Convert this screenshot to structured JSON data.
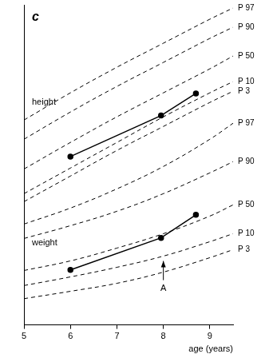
{
  "chart_data": {
    "type": "line",
    "panel_label": "c",
    "x_label": "age (years)",
    "xlim": [
      5,
      9.5
    ],
    "xticks": [
      5,
      6,
      7,
      8,
      9
    ],
    "ylim": [
      0,
      100
    ],
    "tick_labels": "x",
    "grid": false,
    "color": "#000000",
    "annotations": [
      {
        "text": "height"
      },
      {
        "text": "weight"
      },
      {
        "text": "A",
        "x": 8
      }
    ],
    "series": [
      {
        "name": "P 97",
        "line_style": "dashed",
        "marker": "none",
        "x": [
          5,
          6,
          7,
          8,
          9,
          9.5
        ],
        "values": [
          64,
          72.5,
          80.5,
          88,
          95.5,
          99
        ]
      },
      {
        "name": "P 90",
        "line_style": "dashed",
        "marker": "none",
        "x": [
          5,
          6,
          7,
          8,
          9,
          9.5
        ],
        "values": [
          58,
          66.5,
          74.5,
          82,
          89.5,
          93
        ]
      },
      {
        "name": "P 50",
        "line_style": "dashed",
        "marker": "none",
        "x": [
          5,
          6,
          7,
          8,
          9,
          9.5
        ],
        "values": [
          48.7,
          57,
          65,
          72.5,
          80,
          84
        ]
      },
      {
        "name": "P 10",
        "line_style": "dashed",
        "marker": "none",
        "x": [
          5,
          6,
          7,
          8,
          9,
          9.5
        ],
        "values": [
          41,
          49,
          57,
          65,
          72.5,
          76
        ]
      },
      {
        "name": "P 3",
        "line_style": "dashed",
        "marker": "none",
        "x": [
          5,
          6,
          7,
          8,
          9,
          9.5
        ],
        "values": [
          38.5,
          46.5,
          54.5,
          62,
          69.5,
          73
        ]
      },
      {
        "line_style": "solid",
        "marker": "circle",
        "x": [
          6,
          7.95,
          8.7
        ],
        "values": [
          52.6,
          65.4,
          72.3
        ]
      },
      {
        "name": "P 97",
        "line_style": "dashed",
        "marker": "none",
        "x": [
          5,
          6,
          7,
          8,
          9,
          9.5
        ],
        "values": [
          31.5,
          36.5,
          42.5,
          49.5,
          58,
          63
        ]
      },
      {
        "name": "P 90",
        "line_style": "dashed",
        "marker": "none",
        "x": [
          5,
          6,
          7,
          8,
          9,
          9.5
        ],
        "values": [
          27,
          31,
          35.5,
          41,
          47.5,
          51
        ]
      },
      {
        "name": "P 50",
        "line_style": "dashed",
        "marker": "none",
        "x": [
          5,
          6,
          7,
          8,
          9,
          9.5
        ],
        "values": [
          17,
          20,
          24,
          28.5,
          34,
          37.5
        ]
      },
      {
        "name": "P 10",
        "line_style": "dashed",
        "marker": "none",
        "x": [
          5,
          6,
          7,
          8,
          9,
          9.5
        ],
        "values": [
          12.3,
          15,
          18,
          21.5,
          26,
          28.5
        ]
      },
      {
        "name": "P 3",
        "line_style": "dashed",
        "marker": "none",
        "x": [
          5,
          6,
          7,
          8,
          9,
          9.5
        ],
        "values": [
          8.2,
          10.5,
          13,
          16.5,
          21,
          23.5
        ]
      },
      {
        "line_style": "solid",
        "marker": "circle",
        "x": [
          6,
          7.95,
          8.7
        ],
        "values": [
          17.2,
          27.2,
          34.4
        ]
      }
    ]
  }
}
